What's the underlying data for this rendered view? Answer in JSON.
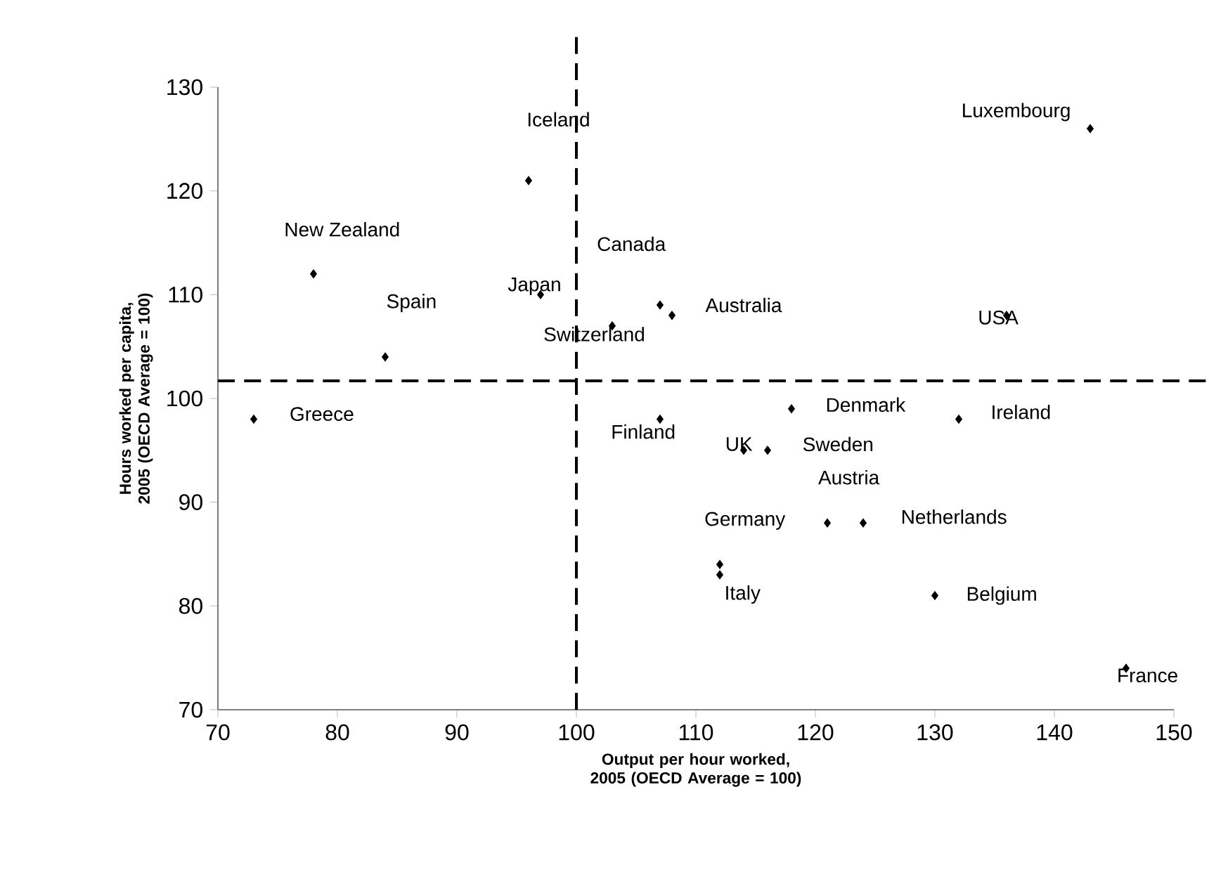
{
  "chart_data": {
    "type": "scatter",
    "xlabel": "Output per hour worked, 2005 (OECD Average = 100)",
    "ylabel": "Hours worked per capita, 2005 (OECD Average = 100)",
    "x": [
      96,
      78,
      84,
      97,
      103,
      107,
      108,
      143,
      136,
      73,
      107,
      118,
      132,
      114,
      116,
      121,
      124,
      112,
      112,
      130,
      146
    ],
    "series": [
      {
        "color": "#000000",
        "values": [
          121,
          112,
          104,
          110,
          107,
          109,
          108,
          126,
          108,
          98,
          98,
          99,
          98,
          95,
          95,
          88,
          88,
          84,
          83,
          81,
          74
        ]
      }
    ],
    "marker": "diamond",
    "xlim": [
      70,
      150
    ],
    "xticks": [
      70,
      80,
      90,
      100,
      110,
      120,
      130,
      140,
      150
    ],
    "ylim": [
      70,
      130
    ],
    "yticks": [
      70,
      80,
      90,
      100,
      110,
      120,
      130
    ],
    "ref_lines": [
      {
        "axis": "x",
        "value": 100,
        "line_style": "dashed",
        "color": "#000000"
      },
      {
        "axis": "y",
        "value": 101.7,
        "line_style": "dashed",
        "color": "#000000"
      }
    ],
    "annotations": [
      {
        "text": "Iceland",
        "x": 96,
        "y": 121
      },
      {
        "text": "New Zealand",
        "x": 78,
        "y": 112
      },
      {
        "text": "Canada",
        "x": 107,
        "y": 109
      },
      {
        "text": "Spain",
        "x": 84,
        "y": 104
      },
      {
        "text": "Japan",
        "x": 97,
        "y": 110
      },
      {
        "text": "Switzerland",
        "x": 103,
        "y": 107
      },
      {
        "text": "Australia",
        "x": 108,
        "y": 108
      },
      {
        "text": "Luxembourg",
        "x": 143,
        "y": 126
      },
      {
        "text": "USA",
        "x": 136,
        "y": 108
      },
      {
        "text": "Greece",
        "x": 73,
        "y": 98
      },
      {
        "text": "Finland",
        "x": 107,
        "y": 98
      },
      {
        "text": "Denmark",
        "x": 118,
        "y": 99
      },
      {
        "text": "Ireland",
        "x": 132,
        "y": 98
      },
      {
        "text": "UK",
        "x": 114,
        "y": 95
      },
      {
        "text": "Sweden",
        "x": 116,
        "y": 95
      },
      {
        "text": "Austria",
        "x": 121,
        "y": 88
      },
      {
        "text": "Germany",
        "x": 112,
        "y": 84
      },
      {
        "text": "Netherlands",
        "x": 124,
        "y": 88
      },
      {
        "text": "Italy",
        "x": 112,
        "y": 83
      },
      {
        "text": "Belgium",
        "x": 130,
        "y": 81
      },
      {
        "text": "France",
        "x": 146,
        "y": 74
      }
    ]
  }
}
